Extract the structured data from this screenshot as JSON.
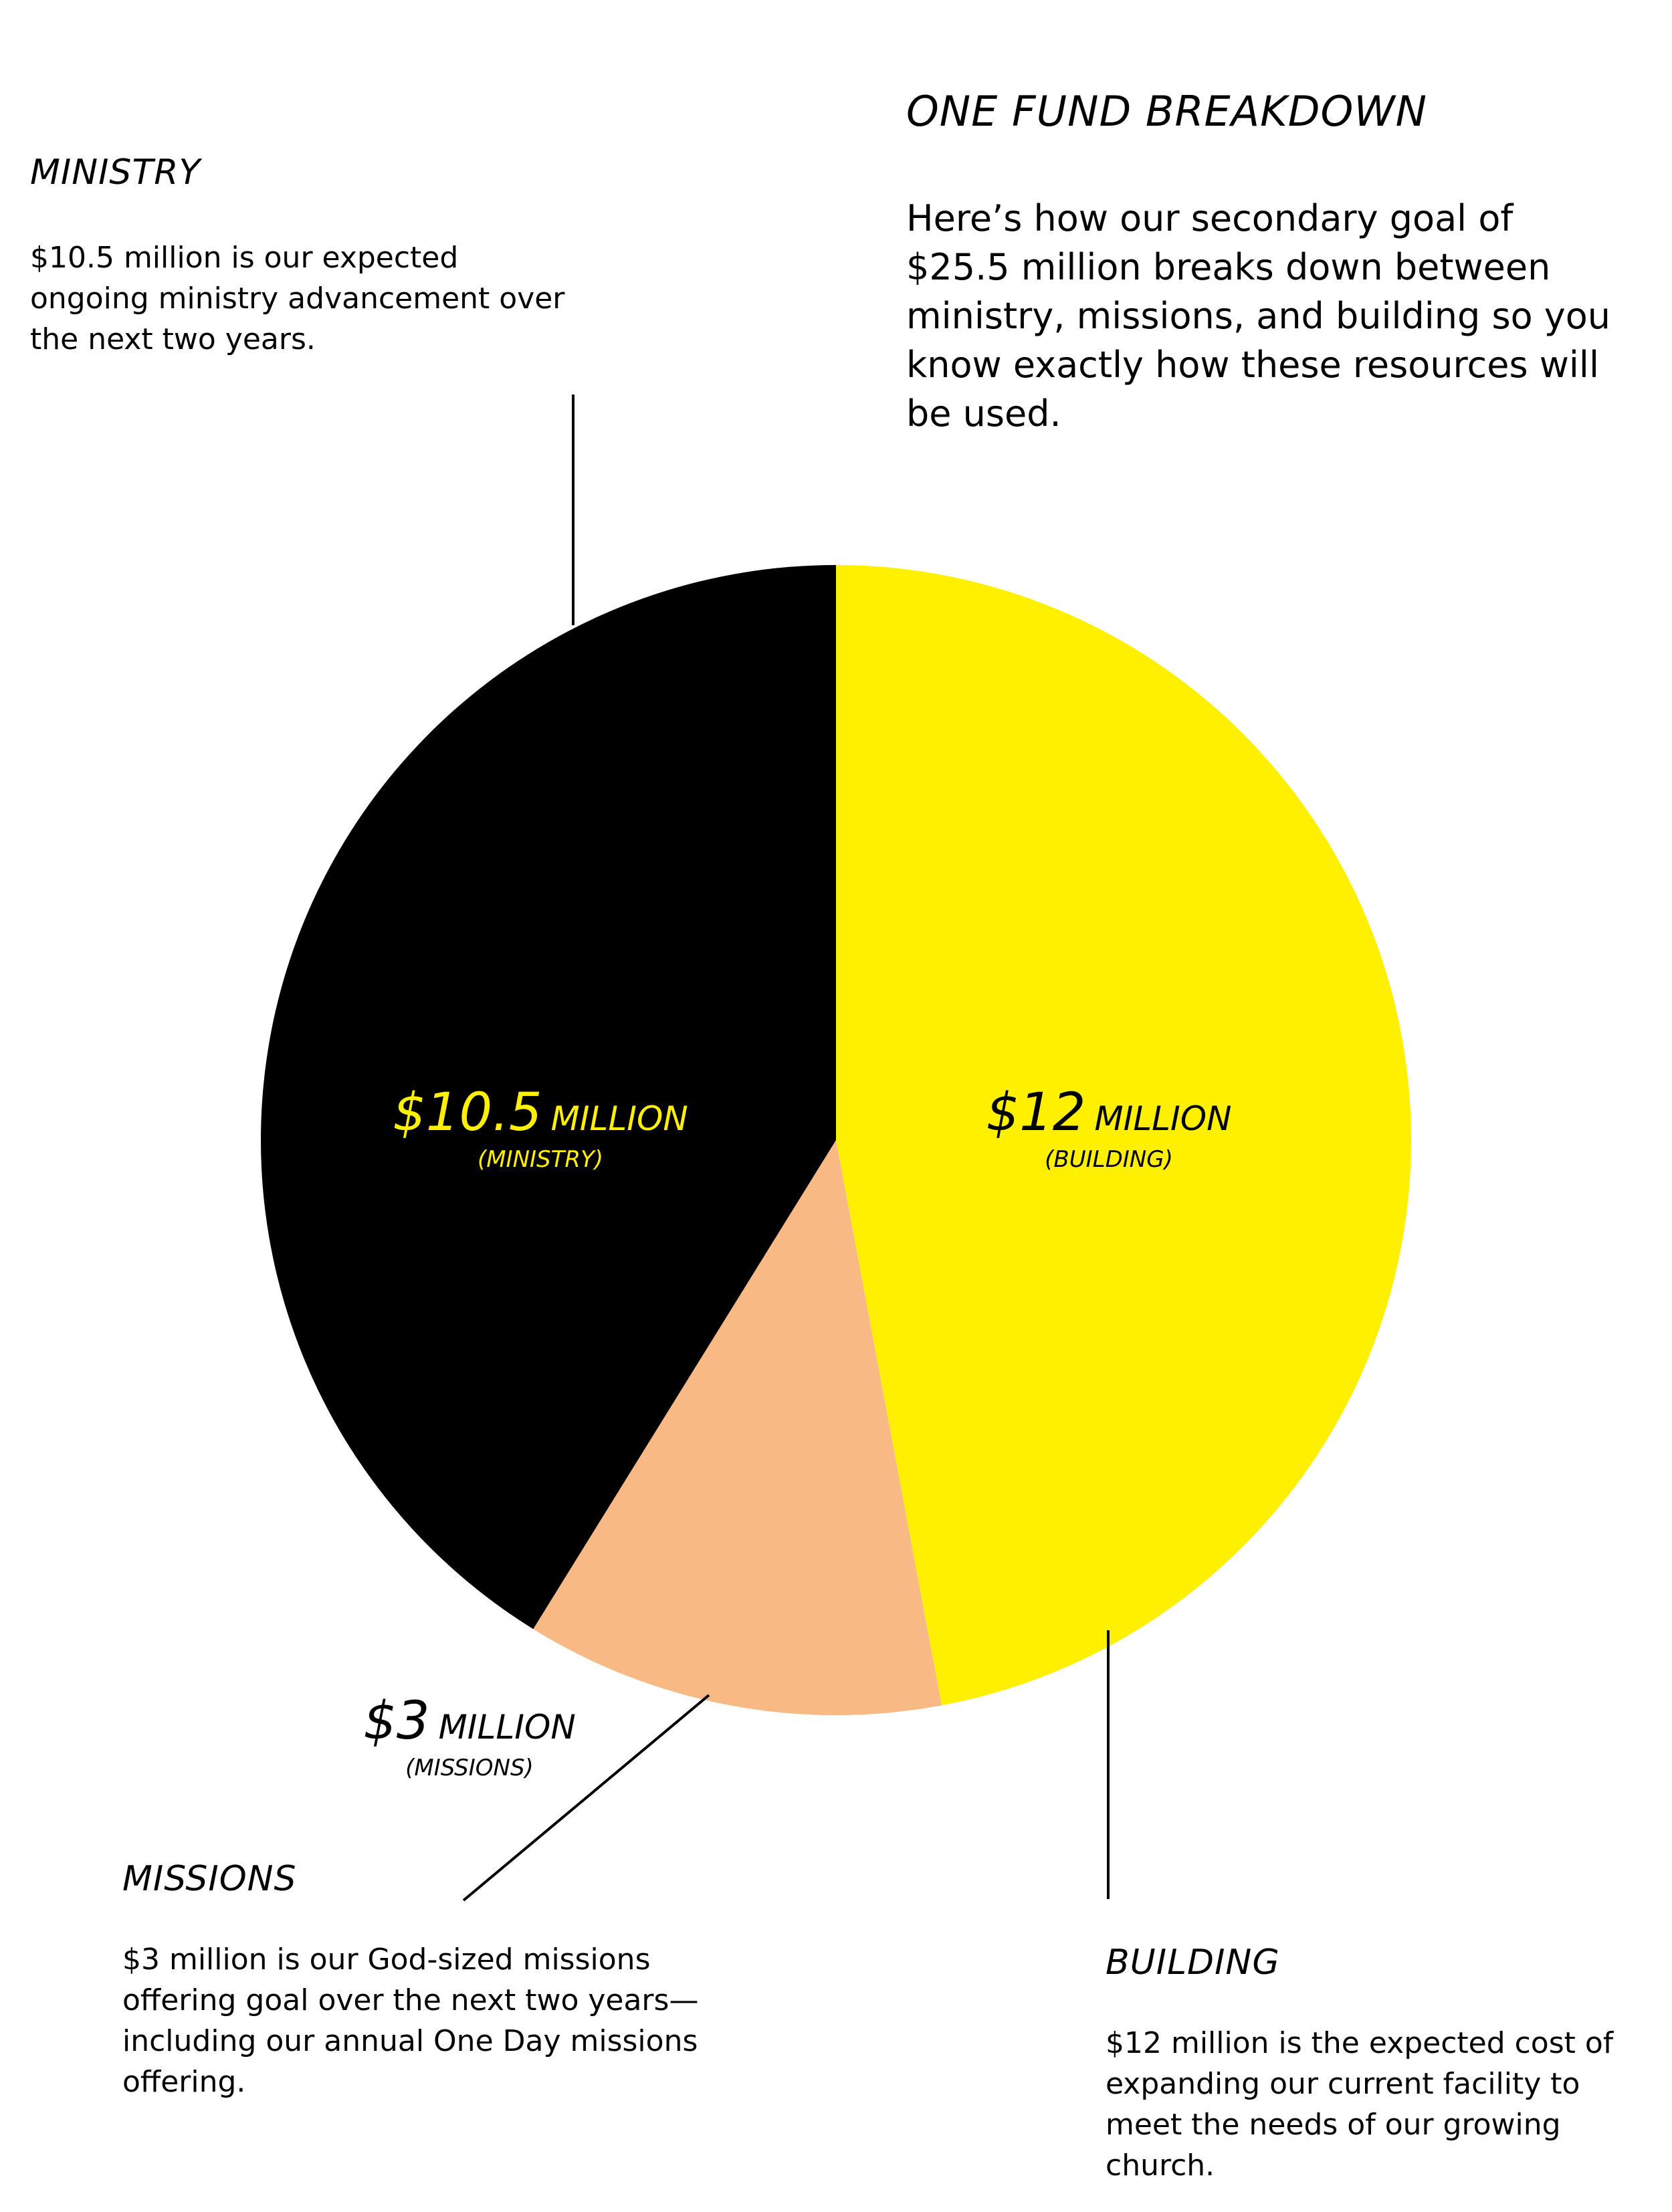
{
  "header": {
    "title": "ONE FUND BREAKDOWN",
    "intro": "Here’s how our secondary goal of $25.5 million breaks down between ministry, missions, and building so you know exactly how these resources will be used."
  },
  "sections": {
    "ministry": {
      "heading": "MINISTRY",
      "description": "$10.5 million is our expected ongoing ministry advancement over the next two years."
    },
    "missions": {
      "heading": "MISSIONS",
      "description": "$3 million is our God-sized missions offering goal over the next two years—including our annual One Day missions offering."
    },
    "building": {
      "heading": "BUILDING",
      "description": "$12 million is the expected cost of expanding our current facility to meet the needs of our growing church."
    }
  },
  "colors": {
    "building": "#FFF000",
    "missions": "#F8B985",
    "ministry": "#000000",
    "ministry_label": "#FFF000",
    "dark_label": "#000000",
    "leader_line": "#000000"
  },
  "chart_data": {
    "type": "pie",
    "unit": "$ million",
    "slices": [
      {
        "key": "building",
        "value": 12,
        "amount": "$12",
        "unit_label": "MILLION",
        "category": "(BUILDING)",
        "color": "#FFF000"
      },
      {
        "key": "missions",
        "value": 3,
        "amount": "$3",
        "unit_label": "MILLION",
        "category": "(MISSIONS)",
        "color": "#F8B985"
      },
      {
        "key": "ministry",
        "value": 10.5,
        "amount": "$10.5",
        "unit_label": "MILLION",
        "category": "(MINISTRY)",
        "color": "#000000"
      }
    ],
    "start": "top",
    "direction": "clockwise"
  }
}
